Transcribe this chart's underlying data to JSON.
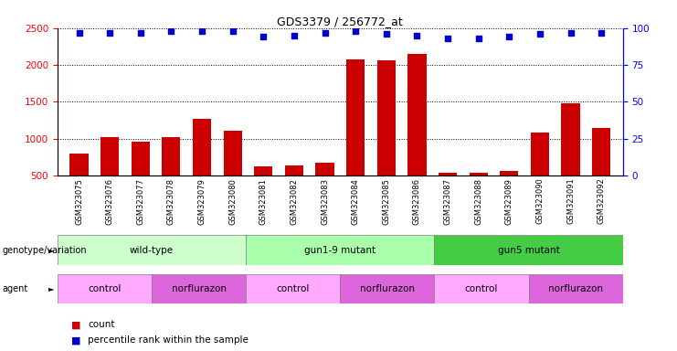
{
  "title": "GDS3379 / 256772_at",
  "samples": [
    "GSM323075",
    "GSM323076",
    "GSM323077",
    "GSM323078",
    "GSM323079",
    "GSM323080",
    "GSM323081",
    "GSM323082",
    "GSM323083",
    "GSM323084",
    "GSM323085",
    "GSM323086",
    "GSM323087",
    "GSM323088",
    "GSM323089",
    "GSM323090",
    "GSM323091",
    "GSM323092"
  ],
  "counts": [
    800,
    1020,
    960,
    1020,
    1270,
    1110,
    630,
    640,
    670,
    2080,
    2060,
    2150,
    540,
    540,
    560,
    1080,
    1480,
    1140
  ],
  "percentile_ranks": [
    97,
    97,
    97,
    98,
    98,
    98,
    94,
    95,
    97,
    98,
    96,
    95,
    93,
    93,
    94,
    96,
    97,
    97
  ],
  "bar_color": "#cc0000",
  "dot_color": "#0000cc",
  "ylim_left": [
    500,
    2500
  ],
  "ylim_right": [
    0,
    100
  ],
  "yticks_left": [
    500,
    1000,
    1500,
    2000,
    2500
  ],
  "yticks_right": [
    0,
    25,
    50,
    75,
    100
  ],
  "genotype_groups": [
    {
      "label": "wild-type",
      "start": 0,
      "end": 5,
      "color": "#ccffcc"
    },
    {
      "label": "gun1-9 mutant",
      "start": 6,
      "end": 11,
      "color": "#aaffaa"
    },
    {
      "label": "gun5 mutant",
      "start": 12,
      "end": 17,
      "color": "#44cc44"
    }
  ],
  "agent_groups": [
    {
      "label": "control",
      "start": 0,
      "end": 2,
      "color": "#ffaaff"
    },
    {
      "label": "norflurazon",
      "start": 3,
      "end": 5,
      "color": "#dd66dd"
    },
    {
      "label": "control",
      "start": 6,
      "end": 8,
      "color": "#ffaaff"
    },
    {
      "label": "norflurazon",
      "start": 9,
      "end": 11,
      "color": "#dd66dd"
    },
    {
      "label": "control",
      "start": 12,
      "end": 14,
      "color": "#ffaaff"
    },
    {
      "label": "norflurazon",
      "start": 15,
      "end": 17,
      "color": "#dd66dd"
    }
  ],
  "legend_count_color": "#cc0000",
  "legend_dot_color": "#0000cc",
  "ylabel_left_color": "red",
  "ylabel_right_color": "blue",
  "xtick_bg_color": "#cccccc",
  "fig_width": 7.41,
  "fig_height": 3.84,
  "dpi": 100
}
